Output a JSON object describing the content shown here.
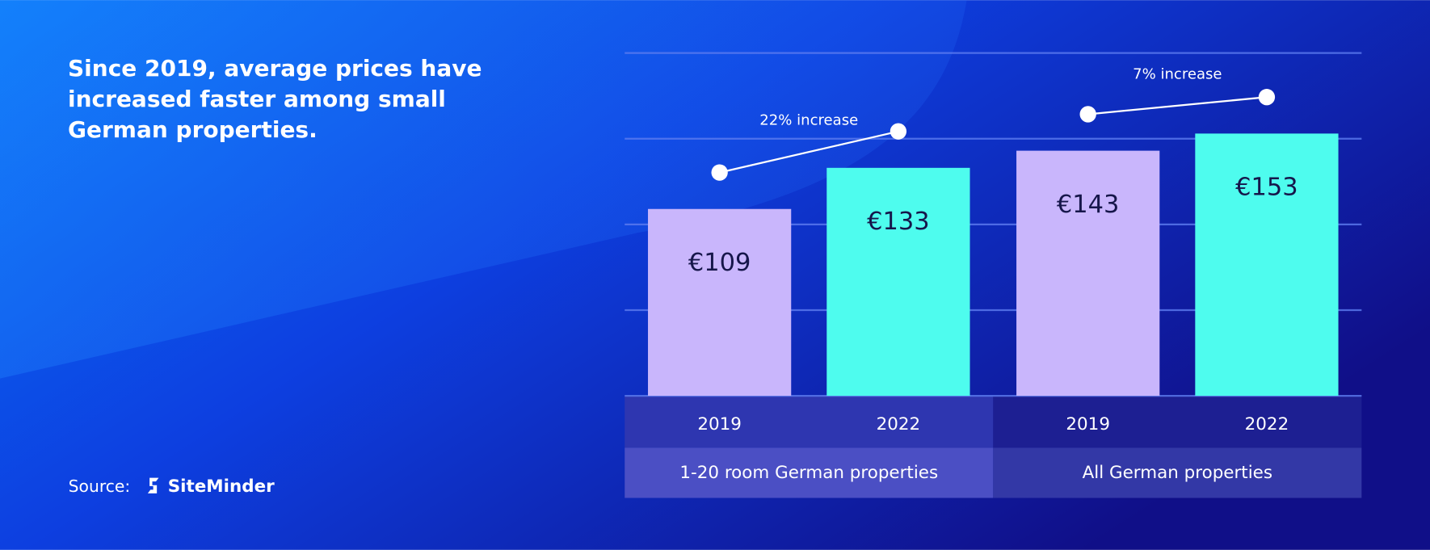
{
  "chart_data": {
    "type": "bar",
    "title": "Since 2019, average prices have increased faster among small German properties.",
    "categories": [
      "2019",
      "2022",
      "2019",
      "2022"
    ],
    "groups": [
      "1-20 room German properties",
      "All German properties"
    ],
    "values": [
      109,
      133,
      143,
      153
    ],
    "value_labels": [
      "€109",
      "€133",
      "€143",
      "€153"
    ],
    "colors": [
      "#c9b6fc",
      "#4efcee",
      "#c9b6fc",
      "#4efcee"
    ],
    "annotations": [
      "22% increase",
      "7% increase"
    ],
    "ylim": [
      0,
      200
    ],
    "yticks": [
      0,
      50,
      100,
      150,
      200
    ],
    "grid": true,
    "source_label": "Source:",
    "source_name": "SiteMinder"
  }
}
